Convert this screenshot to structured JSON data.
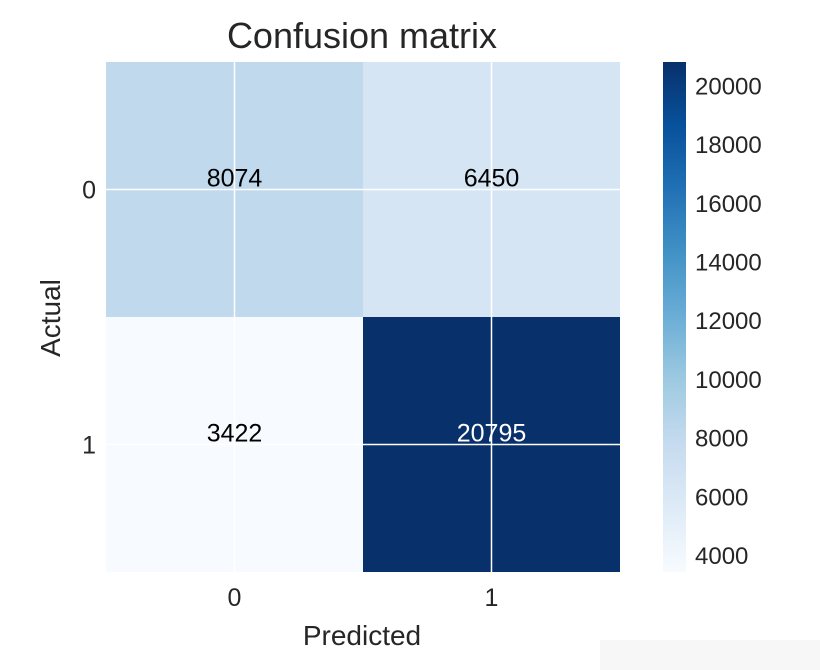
{
  "chart_data": {
    "type": "heatmap",
    "title": "Confusion matrix",
    "xlabel": "Predicted",
    "ylabel": "Actual",
    "x_categories": [
      "0",
      "1"
    ],
    "y_categories": [
      "0",
      "1"
    ],
    "matrix": [
      [
        8074,
        6450
      ],
      [
        3422,
        20795
      ]
    ],
    "colormap": "Blues",
    "value_range": [
      3422,
      20795
    ],
    "colorbar_ticks": [
      "4000",
      "6000",
      "8000",
      "10000",
      "12000",
      "14000",
      "16000",
      "18000",
      "20000"
    ],
    "colorbar_tick_values": [
      4000,
      6000,
      8000,
      10000,
      12000,
      14000,
      16000,
      18000,
      20000
    ],
    "grid": true
  }
}
